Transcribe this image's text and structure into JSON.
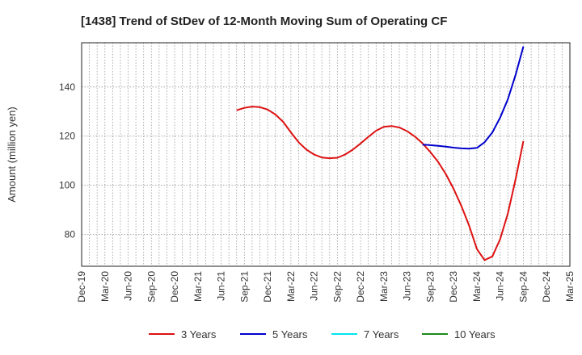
{
  "chart_data": {
    "type": "line",
    "title": "[1438]  Trend of StDev of 12-Month Moving Sum of Operating CF",
    "ylabel": "Amount (million yen)",
    "xlabel": "",
    "x_tick_labels": [
      "Dec-19",
      "Mar-20",
      "Jun-20",
      "Sep-20",
      "Dec-20",
      "Mar-21",
      "Jun-21",
      "Sep-21",
      "Dec-21",
      "Mar-22",
      "Jun-22",
      "Sep-22",
      "Dec-22",
      "Mar-23",
      "Jun-23",
      "Sep-23",
      "Dec-23",
      "Mar-24",
      "Jun-24",
      "Sep-24",
      "Dec-24",
      "Mar-25"
    ],
    "y_ticks": [
      80,
      100,
      120,
      140
    ],
    "ylim": [
      67,
      158
    ],
    "grid": true,
    "legend_position": "bottom",
    "series": [
      {
        "name": "3 Years",
        "color": "#dd1111",
        "x": [
          "Aug-21",
          "Sep-21",
          "Oct-21",
          "Nov-21",
          "Dec-21",
          "Jan-22",
          "Feb-22",
          "Mar-22",
          "Apr-22",
          "May-22",
          "Jun-22",
          "Jul-22",
          "Aug-22",
          "Sep-22",
          "Oct-22",
          "Nov-22",
          "Dec-22",
          "Jan-23",
          "Feb-23",
          "Mar-23",
          "Apr-23",
          "May-23",
          "Jun-23",
          "Jul-23",
          "Aug-23",
          "Sep-23",
          "Oct-23",
          "Nov-23",
          "Dec-23",
          "Jan-24",
          "Feb-24",
          "Mar-24",
          "Apr-24",
          "May-24",
          "Jun-24",
          "Jul-24",
          "Aug-24",
          "Sep-24"
        ],
        "values": [
          130.5,
          131.5,
          132,
          131.8,
          130.8,
          128.8,
          125.8,
          121.5,
          117.5,
          114.5,
          112.5,
          111.3,
          111,
          111.2,
          112.5,
          114.5,
          117,
          119.7,
          122.2,
          123.8,
          124.1,
          123.5,
          122,
          119.8,
          117,
          113.5,
          109.5,
          104.5,
          98.5,
          91.5,
          83.5,
          74,
          69.5,
          71,
          78,
          88.5,
          102.5,
          118
        ]
      },
      {
        "name": "5 Years",
        "color": "#0000cc",
        "x": [
          "Aug-23",
          "Sep-23",
          "Oct-23",
          "Nov-23",
          "Dec-23",
          "Jan-24",
          "Feb-24",
          "Mar-24",
          "Apr-24",
          "May-24",
          "Jun-24",
          "Jul-24",
          "Aug-24",
          "Sep-24"
        ],
        "values": [
          116.5,
          116.3,
          116,
          115.7,
          115.3,
          115,
          114.9,
          115.2,
          117.5,
          121.5,
          127.5,
          135,
          145,
          156.5
        ]
      },
      {
        "name": "7 Years",
        "color": "#00e5ee",
        "x": [],
        "values": []
      },
      {
        "name": "10 Years",
        "color": "#1a8a1a",
        "x": [],
        "values": []
      }
    ]
  }
}
